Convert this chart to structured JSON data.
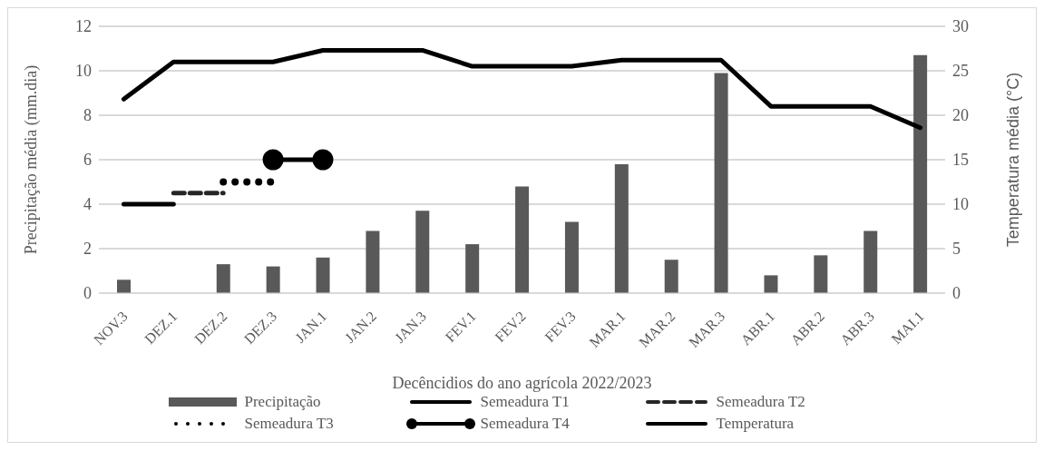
{
  "chart_data": {
    "type": "bar",
    "xlabel": "Decêncidios do ano agrícola 2022/2023",
    "ylabel": "Precipitação média (mm.dia)",
    "y2label": "Temperatura média (°C)",
    "categories": [
      "NOV.3",
      "DEZ.1",
      "DEZ.2",
      "DEZ.3",
      "JAN.1",
      "JAN.2",
      "JAN.3",
      "FEV.1",
      "FEV.2",
      "FEV.3",
      "MAR.1",
      "MAR.2",
      "MAR.3",
      "ABR.1",
      "ABR.2",
      "ABR.3",
      "MAI.1"
    ],
    "series": [
      {
        "name": "Precipitação",
        "color": "#595959",
        "values": [
          0.6,
          0,
          1.3,
          1.2,
          1.6,
          2.8,
          3.7,
          2.2,
          4.8,
          3.2,
          5.8,
          1.5,
          9.9,
          0.8,
          1.7,
          2.8,
          10.7
        ]
      },
      {
        "name": "Semeadura T1",
        "type": "line",
        "color": "#000000",
        "line_style": "solid",
        "marker": "none",
        "values": [
          4,
          4,
          null,
          null,
          null,
          null,
          null,
          null,
          null,
          null,
          null,
          null,
          null,
          null,
          null,
          null,
          null
        ]
      },
      {
        "name": "Semeadura T2",
        "type": "line",
        "color": "#262626",
        "line_style": "dashed",
        "marker": "none",
        "values": [
          null,
          4.5,
          4.5,
          null,
          null,
          null,
          null,
          null,
          null,
          null,
          null,
          null,
          null,
          null,
          null,
          null,
          null
        ]
      },
      {
        "name": "Semeadura T3",
        "type": "line",
        "color": "#000000",
        "line_style": "dotted",
        "marker": "none",
        "values": [
          null,
          null,
          5,
          5,
          null,
          null,
          null,
          null,
          null,
          null,
          null,
          null,
          null,
          null,
          null,
          null,
          null
        ]
      },
      {
        "name": "Semeadura T4",
        "type": "line",
        "color": "#000000",
        "line_style": "solid",
        "marker": "circle",
        "values": [
          null,
          null,
          null,
          6,
          6,
          null,
          null,
          null,
          null,
          null,
          null,
          null,
          null,
          null,
          null,
          null,
          null
        ]
      },
      {
        "name": "Temperatura",
        "type": "line",
        "axis": "y2",
        "color": "#000000",
        "line_style": "solid",
        "marker": "none",
        "values": [
          21.8,
          26,
          26,
          26,
          27.3,
          27.3,
          27.3,
          25.5,
          25.5,
          25.5,
          26.2,
          26.2,
          26.2,
          21,
          21,
          21,
          18.6
        ]
      }
    ],
    "ylim": [
      0,
      12
    ],
    "yticks": [
      0,
      2,
      4,
      6,
      8,
      10,
      12
    ],
    "y2lim": [
      0,
      30
    ],
    "y2ticks": [
      0,
      5,
      10,
      15,
      20,
      25,
      30
    ],
    "grid": "y",
    "legend": "bottom"
  }
}
